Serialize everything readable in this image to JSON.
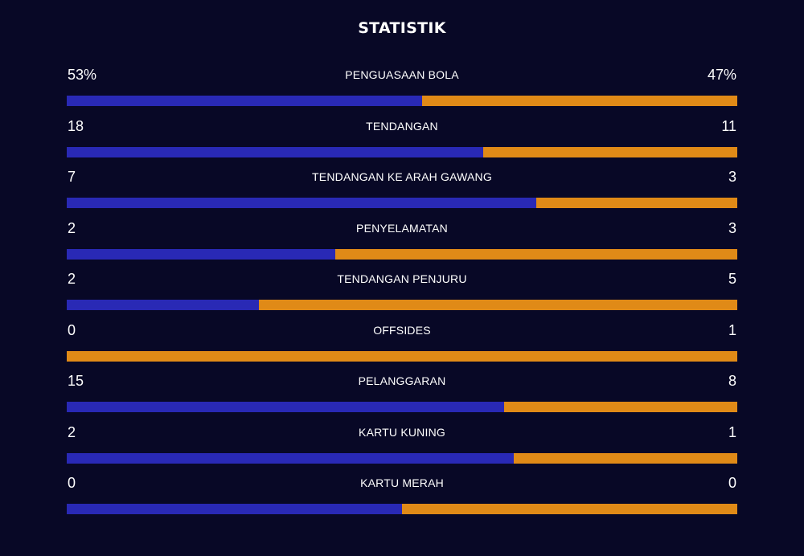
{
  "title": "STATISTIK",
  "colors": {
    "home": "#2929B5",
    "away": "#E08A17",
    "background": "#080826"
  },
  "stats": [
    {
      "name": "PENGUASAAN BOLA",
      "home": "53%",
      "away": "47%",
      "home_share": 0.53
    },
    {
      "name": "TENDANGAN",
      "home": "18",
      "away": "11",
      "home_share": 0.621
    },
    {
      "name": "TENDANGAN KE ARAH GAWANG",
      "home": "7",
      "away": "3",
      "home_share": 0.7
    },
    {
      "name": "PENYELAMATAN",
      "home": "2",
      "away": "3",
      "home_share": 0.4
    },
    {
      "name": "TENDANGAN PENJURU",
      "home": "2",
      "away": "5",
      "home_share": 0.286
    },
    {
      "name": "OFFSIDES",
      "home": "0",
      "away": "1",
      "home_share": 0
    },
    {
      "name": "PELANGGARAN",
      "home": "15",
      "away": "8",
      "home_share": 0.652
    },
    {
      "name": "KARTU KUNING",
      "home": "2",
      "away": "1",
      "home_share": 0.667
    },
    {
      "name": "KARTU MERAH",
      "home": "0",
      "away": "0",
      "home_share": 0.5
    }
  ]
}
